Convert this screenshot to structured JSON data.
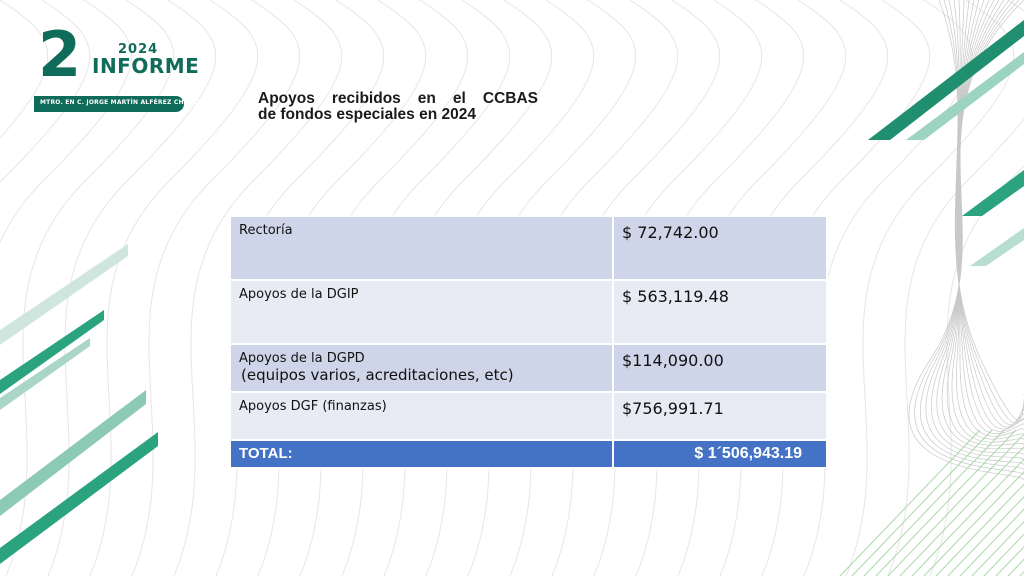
{
  "logo": {
    "number": "2",
    "year": "2024",
    "word": "INFORME",
    "author": "MTRO. EN C. JORGE MARTÍN ALFÉREZ CHÁVEZ"
  },
  "title": {
    "line1": "Apoyos recibidos en el CCBAS",
    "line2": "de fondos especiales en 2024"
  },
  "table": {
    "rows": [
      {
        "label": "Rectoría",
        "value": "$ 72,742.00"
      },
      {
        "label": "Apoyos de la DGIP",
        "value": "$  563,119.48"
      },
      {
        "label": "Apoyos de la DGPD",
        "label2": " (equipos varios, acreditaciones, etc)",
        "value": "$114,090.00"
      },
      {
        "label": "Apoyos DGF (finanzas)",
        "value": "$756,991.71"
      }
    ],
    "total": {
      "label": "TOTAL:",
      "value": "$ 1´506,943.19"
    }
  },
  "colors": {
    "brand_green": "#0f6b5a",
    "accent_green": "#2aa37e",
    "row_dark": "#cfd5e8",
    "row_light": "#e8eaf4",
    "total_blue": "#4472c4"
  }
}
